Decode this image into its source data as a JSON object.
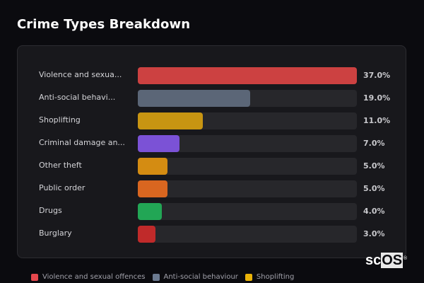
{
  "header": {
    "title": "Crime Types Breakdown"
  },
  "chart_data": {
    "type": "bar",
    "orientation": "horizontal",
    "title": "Crime Types Breakdown",
    "categories": [
      "Violence and sexual offences",
      "Anti-social behaviour",
      "Shoplifting",
      "Criminal damage and arson",
      "Other theft",
      "Public order",
      "Drugs",
      "Burglary"
    ],
    "display_labels": [
      "Violence and sexua...",
      "Anti-social behavi...",
      "Shoplifting",
      "Criminal damage an...",
      "Other theft",
      "Public order",
      "Drugs",
      "Burglary"
    ],
    "values": [
      37.0,
      19.0,
      11.0,
      7.0,
      5.0,
      5.0,
      4.0,
      3.0
    ],
    "value_labels": [
      "37.0%",
      "19.0%",
      "11.0%",
      "7.0%",
      "5.0%",
      "5.0%",
      "4.0%",
      "3.0%"
    ],
    "colors": [
      "#cc4141",
      "#5b6677",
      "#c89512",
      "#7b52d6",
      "#d48c12",
      "#d96620",
      "#22a655",
      "#c02a2a"
    ],
    "unit": "%",
    "legend": [
      {
        "label": "Violence and sexual offences",
        "color": "#e5484d"
      },
      {
        "label": "Anti-social behaviour",
        "color": "#6b7a90"
      },
      {
        "label": "Shoplifting",
        "color": "#eab308"
      }
    ],
    "legend_position": "bottom"
  },
  "watermark": {
    "prefix": "sc",
    "highlight": "OS",
    "reg": "®"
  }
}
